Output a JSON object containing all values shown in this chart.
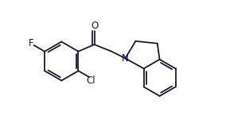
{
  "background_color": "#ffffff",
  "line_color": "#1a1a2e",
  "lw": 1.3,
  "figsize": [
    2.84,
    1.51
  ],
  "dpi": 100,
  "xlim": [
    0,
    8.5
  ],
  "ylim": [
    0,
    5.2
  ]
}
